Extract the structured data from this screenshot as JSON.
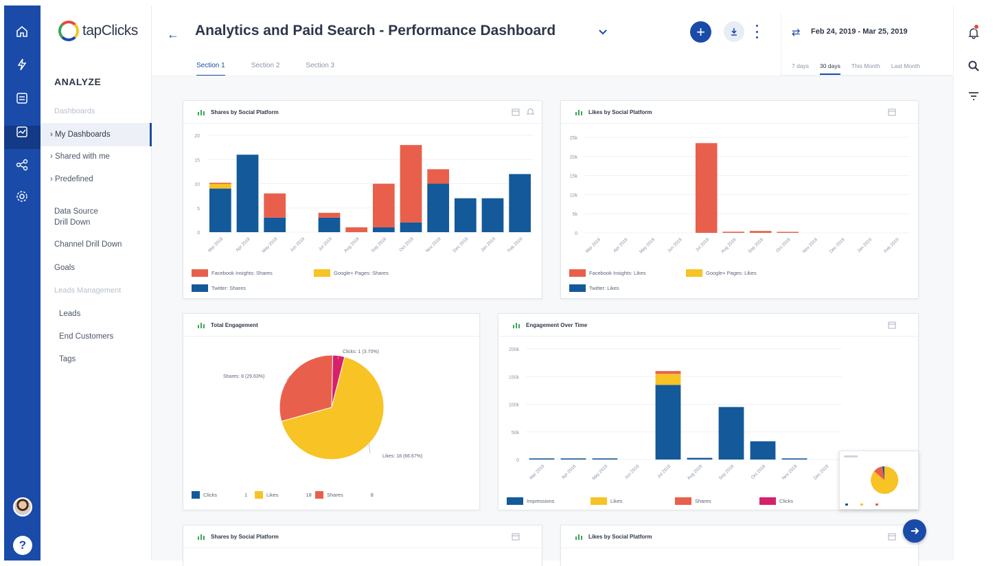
{
  "app": {
    "logo_text": "tapClicks"
  },
  "rail": {
    "icons": [
      "home-icon",
      "bolt-icon",
      "list-icon",
      "analyze-icon",
      "share-icon",
      "gear-icon"
    ],
    "help_label": "?"
  },
  "nav": {
    "heading": "ANALYZE",
    "dashboards_label": "Dashboards",
    "items": [
      {
        "label": "My Dashboards",
        "marker": "›"
      },
      {
        "label": "Shared with me",
        "marker": "›"
      },
      {
        "label": "Predefined",
        "marker": "›"
      }
    ],
    "links": [
      "Data Source\nDrill Down",
      "Channel Drill Down",
      "Goals"
    ],
    "leads_label": "Leads Management",
    "leads_items": [
      "Leads",
      "End Customers",
      "Tags"
    ]
  },
  "header": {
    "back": "←",
    "title": "Analytics and Paid Search - Performance Dashboard",
    "add": "+",
    "tabs": [
      "Section 1",
      "Section 2",
      "Section 3"
    ],
    "date_range": "Feb 24, 2019 - Mar 25, 2019",
    "date_options": [
      "7 days",
      "30 days",
      "This Month",
      "Last Month"
    ]
  },
  "colors": {
    "primary": "#1a4ba8",
    "facebook": "#e8604c",
    "google": "#f7c325",
    "twitter": "#14599a",
    "clicks": "#d6216b"
  },
  "cards": {
    "shares_title": "Shares by Social Platform",
    "likes_title": "Likes by Social Platform",
    "total_title": "Total Engagement",
    "eot_title": "Engagement Over Time",
    "shares2_title": "Shares by Social Platform",
    "likes2_title": "Likes by Social Platform"
  },
  "chart_data": [
    {
      "type": "bar",
      "stacked": true,
      "title": "Shares by Social Platform",
      "categories": [
        "Mar 2018",
        "Apr 2018",
        "May 2018",
        "Jun 2018",
        "Jul 2018",
        "Aug 2018",
        "Sep 2018",
        "Oct 2018",
        "Nov 2018",
        "Dec 2018",
        "Jan 2019",
        "Feb 2019"
      ],
      "ylim": [
        0,
        20
      ],
      "yticks": [
        0,
        5,
        10,
        15,
        20
      ],
      "series": [
        {
          "name": "Twitter: Shares",
          "values": [
            9,
            16,
            3,
            0,
            3,
            0,
            1,
            2,
            10,
            7,
            7,
            12
          ]
        },
        {
          "name": "Google+ Pages: Shares",
          "values": [
            1,
            0,
            0,
            0,
            0,
            0,
            0,
            0,
            0,
            0,
            0,
            0
          ]
        },
        {
          "name": "Facebook Insights: Shares",
          "values": [
            0.2,
            0,
            5,
            0,
            1,
            1,
            9,
            16,
            3,
            0,
            0,
            0
          ]
        }
      ],
      "legend": [
        "Facebook Insights: Shares",
        "Google+ Pages: Shares",
        "Twitter: Shares"
      ]
    },
    {
      "type": "bar",
      "stacked": true,
      "title": "Likes by Social Platform",
      "categories": [
        "Mar 2018",
        "Apr 2018",
        "May 2018",
        "Jun 2018",
        "Jul 2018",
        "Aug 2018",
        "Sep 2018",
        "Oct 2018",
        "Nov 2018",
        "Dec 2018",
        "Jan 2019",
        "Feb 2019"
      ],
      "ylim": [
        0,
        25000
      ],
      "yticks": [
        "0",
        "5k",
        "10k",
        "15k",
        "20k",
        "25k"
      ],
      "series": [
        {
          "name": "Twitter: Likes",
          "values": [
            0,
            0,
            0,
            0,
            0,
            0,
            0,
            0,
            0,
            0,
            0,
            0
          ]
        },
        {
          "name": "Facebook Insights: Likes",
          "values": [
            0,
            0,
            0,
            0,
            23500,
            300,
            500,
            200,
            0,
            0,
            0,
            0
          ]
        }
      ],
      "legend": [
        "Facebook Insights: Likes",
        "Google+ Pages: Likes",
        "Twitter: Likes"
      ]
    },
    {
      "type": "pie",
      "title": "Total Engagement",
      "slices": [
        {
          "name": "Clicks",
          "value": 1,
          "label": "Clicks: 1 (3.70%)"
        },
        {
          "name": "Likes",
          "value": 18,
          "label": "Likes: 18 (66.67%)"
        },
        {
          "name": "Shares",
          "value": 8,
          "label": "Shares: 8 (29.63%)"
        }
      ],
      "legend": [
        {
          "name": "Clicks",
          "value": "1"
        },
        {
          "name": "Likes",
          "value": "18"
        },
        {
          "name": "Shares",
          "value": "8"
        }
      ]
    },
    {
      "type": "bar",
      "stacked": true,
      "title": "Engagement Over Time",
      "categories": [
        "Mar 2018",
        "Apr 2018",
        "May 2018",
        "Jun 2018",
        "Jul 2018",
        "Aug 2018",
        "Sep 2018",
        "Oct 2018",
        "Nov 2018",
        "Dec 2018"
      ],
      "ylim": [
        0,
        200000
      ],
      "yticks": [
        "0",
        "50k",
        "100k",
        "150k",
        "200k"
      ],
      "series": [
        {
          "name": "Impressions",
          "values": [
            2000,
            2000,
            2000,
            0,
            135000,
            3000,
            95000,
            33000,
            2000,
            0
          ]
        },
        {
          "name": "Likes",
          "values": [
            0,
            0,
            0,
            0,
            20000,
            0,
            0,
            0,
            0,
            0
          ]
        },
        {
          "name": "Shares",
          "values": [
            0,
            0,
            0,
            0,
            5000,
            0,
            0,
            0,
            0,
            0
          ]
        },
        {
          "name": "Clicks",
          "values": [
            0,
            0,
            0,
            0,
            0,
            0,
            0,
            0,
            0,
            0
          ]
        }
      ],
      "legend": [
        "Impressions",
        "Likes",
        "Shares",
        "Clicks"
      ]
    }
  ]
}
